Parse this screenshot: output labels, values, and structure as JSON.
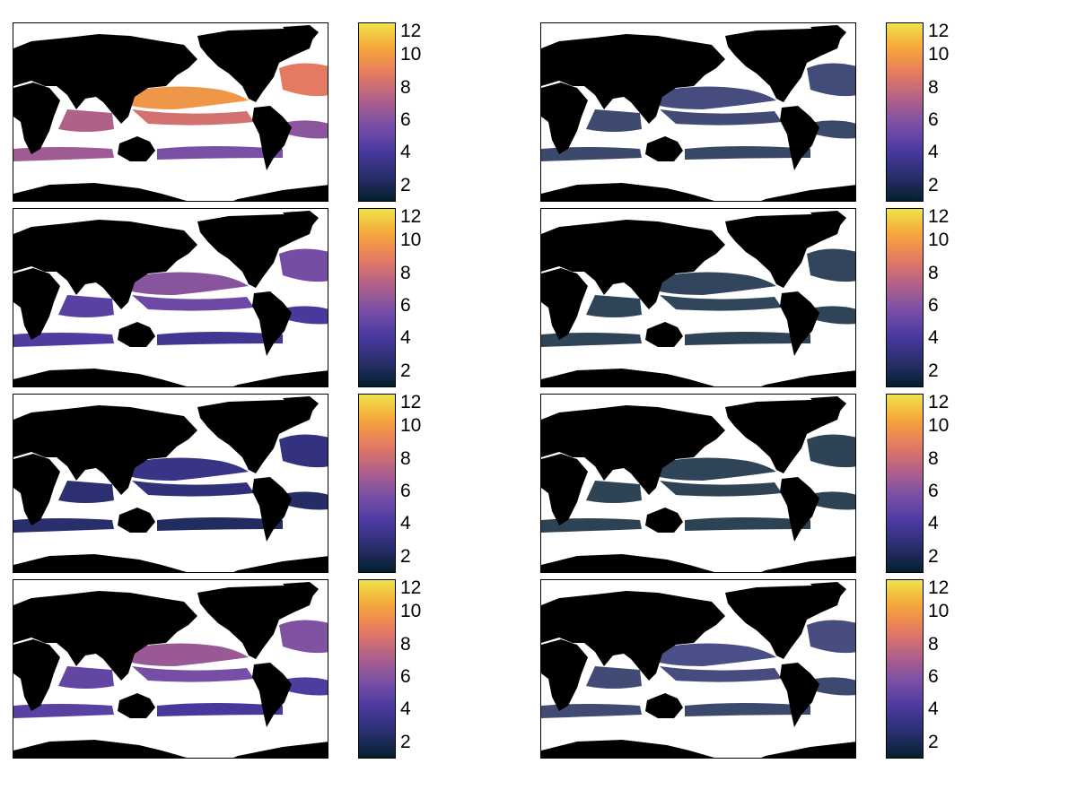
{
  "chart_data": {
    "type": "heatmap",
    "layout": "4 rows x 2 columns of global ocean maps, Pacific-centered, land masked black, each with its own vertical colorbar",
    "colormap": {
      "name": "thermal",
      "stops": [
        "#04202e",
        "#2a2f6e",
        "#4a3aa0",
        "#7a4fa6",
        "#b0618a",
        "#e67a62",
        "#f6a53c",
        "#efe34a"
      ]
    },
    "land_color": "#000000",
    "nodata_color": "#ffffff",
    "colorbar": {
      "ticks": [
        "12",
        "10",
        "8",
        "6",
        "4",
        "2"
      ],
      "range": [
        1,
        12
      ]
    },
    "panels": [
      {
        "id": "r1c1",
        "intensity": 0.95
      },
      {
        "id": "r1c2",
        "intensity": 0.15
      },
      {
        "id": "r2c1",
        "intensity": 0.55
      },
      {
        "id": "r2c2",
        "intensity": 0.05
      },
      {
        "id": "r3c1",
        "intensity": 0.25
      },
      {
        "id": "r3c2",
        "intensity": 0.03
      },
      {
        "id": "r4c1",
        "intensity": 0.6
      },
      {
        "id": "r4c2",
        "intensity": 0.18
      }
    ]
  }
}
